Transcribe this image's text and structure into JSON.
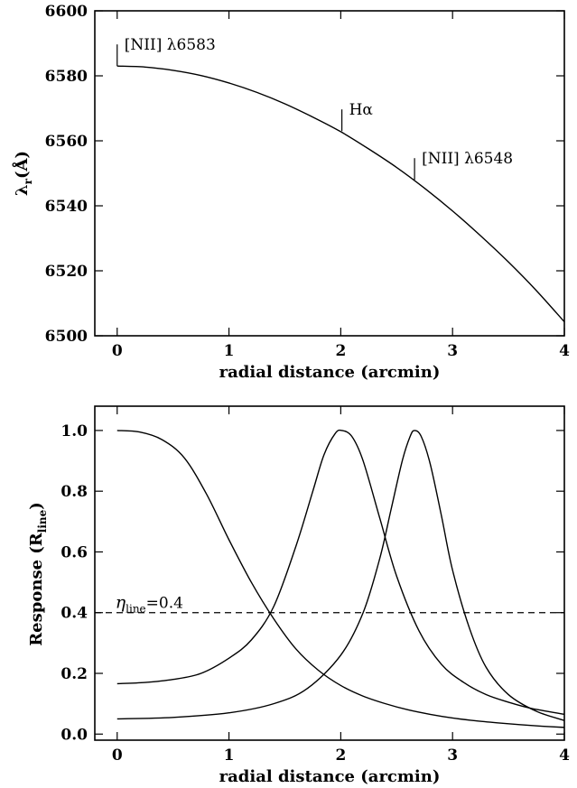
{
  "chart_data": [
    {
      "type": "line",
      "xlabel": "radial distance (arcmin)",
      "ylabel": "λr(Å)",
      "ylabel_main": "λ",
      "ylabel_sub": "r",
      "ylabel_tail": "(Å)",
      "xlim": [
        -0.2,
        4
      ],
      "ylim": [
        6500,
        6600
      ],
      "xticks": [
        0,
        1,
        2,
        3,
        4
      ],
      "yticks": [
        6500,
        6520,
        6540,
        6560,
        6580,
        6600
      ],
      "grid": false,
      "series": [
        {
          "x": [
            0,
            0.25,
            0.5,
            0.75,
            1.0,
            1.25,
            1.5,
            1.75,
            2.0,
            2.25,
            2.5,
            2.75,
            3.0,
            3.25,
            3.5,
            3.75,
            4.0
          ],
          "values": [
            6583.0,
            6582.7,
            6581.7,
            6580.1,
            6577.8,
            6574.9,
            6571.4,
            6567.3,
            6562.8,
            6557.5,
            6551.8,
            6545.4,
            6538.4,
            6530.8,
            6522.7,
            6513.9,
            6504.3
          ]
        }
      ],
      "annotations": [
        {
          "text": "[NII] λ6583",
          "x": 0.0,
          "y": 6583.0
        },
        {
          "text": "Hα",
          "x": 2.01,
          "y": 6563.0
        },
        {
          "text": "[NII] λ6548",
          "x": 2.66,
          "y": 6548.0
        }
      ]
    },
    {
      "type": "line",
      "xlabel": "radial distance (arcmin)",
      "ylabel": "Response (Rline)",
      "ylabel_main": "Response (R",
      "ylabel_sub": "line",
      "ylabel_tail": ")",
      "xlim": [
        -0.2,
        4
      ],
      "ylim": [
        -0.02,
        1.08
      ],
      "xticks": [
        0,
        1,
        2,
        3,
        4
      ],
      "yticks": [
        0.0,
        0.2,
        0.4,
        0.6,
        0.8,
        1.0
      ],
      "grid": false,
      "series": [
        {
          "x": [
            0,
            0.2,
            0.4,
            0.6,
            0.8,
            1.0,
            1.2,
            1.4,
            1.6,
            1.8,
            2.0,
            2.2,
            2.4,
            2.6,
            2.8,
            3.0,
            3.2,
            3.4,
            3.6,
            3.8,
            4.0
          ],
          "values": [
            1.0,
            0.995,
            0.97,
            0.91,
            0.79,
            0.64,
            0.5,
            0.38,
            0.28,
            0.21,
            0.16,
            0.125,
            0.1,
            0.08,
            0.065,
            0.053,
            0.044,
            0.037,
            0.031,
            0.026,
            0.022
          ]
        },
        {
          "x": [
            0,
            0.25,
            0.5,
            0.75,
            1.0,
            1.2,
            1.4,
            1.6,
            1.75,
            1.85,
            1.95,
            2.01,
            2.1,
            2.2,
            2.35,
            2.5,
            2.7,
            2.9,
            3.1,
            3.3,
            3.5,
            3.7,
            4.0
          ],
          "values": [
            0.166,
            0.17,
            0.18,
            0.2,
            0.25,
            0.31,
            0.42,
            0.62,
            0.8,
            0.92,
            0.99,
            1.0,
            0.98,
            0.9,
            0.71,
            0.52,
            0.34,
            0.23,
            0.17,
            0.13,
            0.105,
            0.085,
            0.065
          ]
        },
        {
          "x": [
            0,
            0.5,
            1.0,
            1.4,
            1.7,
            2.0,
            2.2,
            2.35,
            2.45,
            2.55,
            2.62,
            2.66,
            2.72,
            2.8,
            2.9,
            3.0,
            3.15,
            3.3,
            3.5,
            3.75,
            4.0
          ],
          "values": [
            0.05,
            0.055,
            0.07,
            0.1,
            0.15,
            0.26,
            0.4,
            0.58,
            0.74,
            0.9,
            0.98,
            1.0,
            0.98,
            0.89,
            0.72,
            0.54,
            0.35,
            0.22,
            0.13,
            0.075,
            0.045
          ]
        }
      ],
      "threshold": {
        "y": 0.4,
        "style": "dashed",
        "label_main": "η",
        "label_sub": "line",
        "label_tail": "=0.4"
      }
    }
  ]
}
